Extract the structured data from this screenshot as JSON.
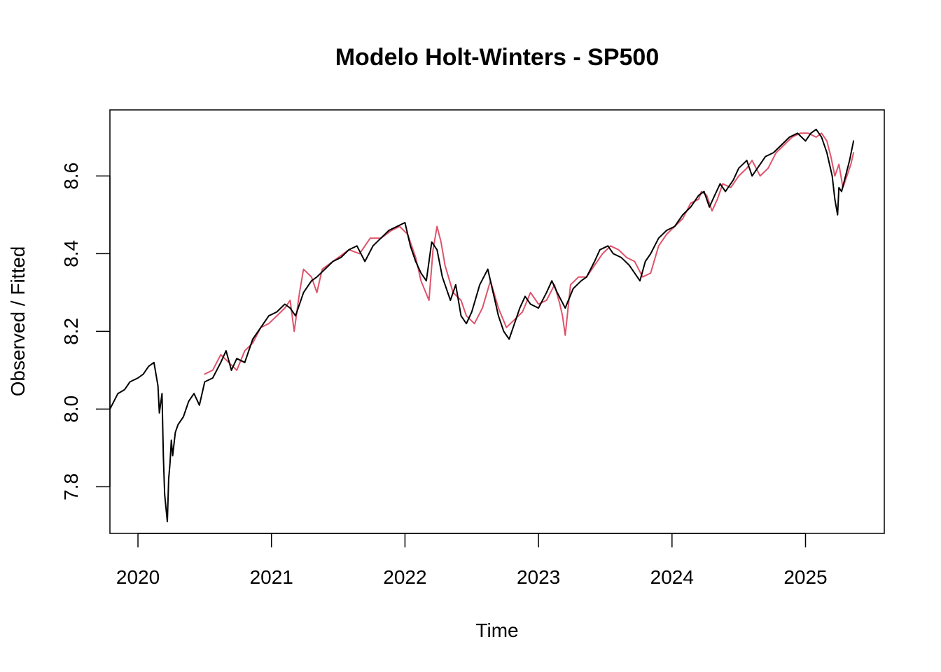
{
  "chart_data": {
    "type": "line",
    "title": "Modelo Holt-Winters - SP500",
    "xlabel": "Time",
    "ylabel": "Observed / Fitted",
    "xlim": [
      2019.79,
      2025.59
    ],
    "ylim": [
      7.68,
      8.77
    ],
    "x_ticks": [
      {
        "value": 2020,
        "label": "2020"
      },
      {
        "value": 2021,
        "label": "2021"
      },
      {
        "value": 2022,
        "label": "2022"
      },
      {
        "value": 2023,
        "label": "2023"
      },
      {
        "value": 2024,
        "label": "2024"
      },
      {
        "value": 2025,
        "label": "2025"
      }
    ],
    "y_ticks": [
      {
        "value": 7.8,
        "label": "7.8"
      },
      {
        "value": 8.0,
        "label": "8.0"
      },
      {
        "value": 8.2,
        "label": "8.2"
      },
      {
        "value": 8.4,
        "label": "8.4"
      },
      {
        "value": 8.6,
        "label": "8.6"
      }
    ],
    "grid": false,
    "legend": "none",
    "series": [
      {
        "color": "#DF536B",
        "x": [
          2020.5,
          2020.56,
          2020.62,
          2020.68,
          2020.74,
          2020.8,
          2020.86,
          2020.92,
          2020.98,
          2021.04,
          2021.1,
          2021.14,
          2021.17,
          2021.21,
          2021.24,
          2021.3,
          2021.34,
          2021.38,
          2021.42,
          2021.5,
          2021.58,
          2021.66,
          2021.74,
          2021.82,
          2021.9,
          2021.96,
          2022.02,
          2022.08,
          2022.12,
          2022.18,
          2022.21,
          2022.24,
          2022.27,
          2022.3,
          2022.36,
          2022.42,
          2022.46,
          2022.52,
          2022.58,
          2022.64,
          2022.7,
          2022.76,
          2022.82,
          2022.88,
          2022.94,
          2023.0,
          2023.06,
          2023.12,
          2023.16,
          2023.18,
          2023.2,
          2023.24,
          2023.3,
          2023.36,
          2023.42,
          2023.48,
          2023.54,
          2023.6,
          2023.66,
          2023.72,
          2023.78,
          2023.84,
          2023.9,
          2023.96,
          2024.02,
          2024.08,
          2024.14,
          2024.2,
          2024.22,
          2024.26,
          2024.3,
          2024.34,
          2024.38,
          2024.44,
          2024.5,
          2024.56,
          2024.6,
          2024.66,
          2024.72,
          2024.78,
          2024.84,
          2024.9,
          2024.96,
          2025.02,
          2025.08,
          2025.12,
          2025.16,
          2025.19,
          2025.22,
          2025.25,
          2025.28,
          2025.31,
          2025.34,
          2025.36
        ],
        "y": [
          8.09,
          8.1,
          8.14,
          8.12,
          8.1,
          8.15,
          8.17,
          8.21,
          8.22,
          8.24,
          8.26,
          8.28,
          8.2,
          8.3,
          8.36,
          8.34,
          8.3,
          8.36,
          8.37,
          8.39,
          8.41,
          8.4,
          8.44,
          8.44,
          8.46,
          8.47,
          8.45,
          8.39,
          8.33,
          8.28,
          8.41,
          8.47,
          8.43,
          8.37,
          8.3,
          8.28,
          8.24,
          8.22,
          8.26,
          8.33,
          8.26,
          8.21,
          8.23,
          8.25,
          8.3,
          8.27,
          8.28,
          8.32,
          8.27,
          8.24,
          8.19,
          8.32,
          8.34,
          8.34,
          8.37,
          8.4,
          8.42,
          8.41,
          8.39,
          8.38,
          8.34,
          8.35,
          8.42,
          8.45,
          8.47,
          8.49,
          8.53,
          8.54,
          8.56,
          8.55,
          8.51,
          8.54,
          8.58,
          8.57,
          8.6,
          8.62,
          8.64,
          8.6,
          8.62,
          8.66,
          8.68,
          8.7,
          8.71,
          8.71,
          8.7,
          8.71,
          8.69,
          8.65,
          8.6,
          8.63,
          8.57,
          8.6,
          8.63,
          8.66
        ]
      },
      {
        "color": "#000000",
        "x": [
          2019.79,
          2019.85,
          2019.9,
          2019.94,
          2020.0,
          2020.04,
          2020.08,
          2020.12,
          2020.15,
          2020.16,
          2020.18,
          2020.19,
          2020.2,
          2020.22,
          2020.23,
          2020.24,
          2020.25,
          2020.26,
          2020.28,
          2020.3,
          2020.34,
          2020.38,
          2020.42,
          2020.46,
          2020.5,
          2020.56,
          2020.62,
          2020.66,
          2020.7,
          2020.74,
          2020.8,
          2020.86,
          2020.92,
          2020.98,
          2021.04,
          2021.1,
          2021.14,
          2021.18,
          2021.24,
          2021.3,
          2021.34,
          2021.4,
          2021.46,
          2021.52,
          2021.58,
          2021.64,
          2021.7,
          2021.76,
          2021.82,
          2021.88,
          2021.94,
          2022.0,
          2022.04,
          2022.08,
          2022.12,
          2022.16,
          2022.2,
          2022.24,
          2022.28,
          2022.34,
          2022.38,
          2022.42,
          2022.46,
          2022.5,
          2022.56,
          2022.62,
          2022.66,
          2022.7,
          2022.74,
          2022.78,
          2022.82,
          2022.86,
          2022.9,
          2022.94,
          2023.0,
          2023.06,
          2023.1,
          2023.14,
          2023.2,
          2023.26,
          2023.32,
          2023.36,
          2023.42,
          2023.46,
          2023.52,
          2023.56,
          2023.62,
          2023.68,
          2023.72,
          2023.76,
          2023.8,
          2023.84,
          2023.9,
          2023.96,
          2024.02,
          2024.08,
          2024.14,
          2024.2,
          2024.24,
          2024.28,
          2024.32,
          2024.36,
          2024.4,
          2024.46,
          2024.5,
          2024.56,
          2024.6,
          2024.66,
          2024.7,
          2024.76,
          2024.82,
          2024.88,
          2024.94,
          2025.0,
          2025.04,
          2025.08,
          2025.12,
          2025.16,
          2025.2,
          2025.22,
          2025.24,
          2025.25,
          2025.27,
          2025.3,
          2025.33,
          2025.36
        ],
        "y": [
          8.0,
          8.04,
          8.05,
          8.07,
          8.08,
          8.09,
          8.11,
          8.12,
          8.06,
          7.99,
          8.04,
          7.88,
          7.78,
          7.71,
          7.82,
          7.86,
          7.92,
          7.88,
          7.94,
          7.96,
          7.98,
          8.02,
          8.04,
          8.01,
          8.07,
          8.08,
          8.12,
          8.15,
          8.1,
          8.13,
          8.12,
          8.18,
          8.21,
          8.24,
          8.25,
          8.27,
          8.26,
          8.24,
          8.3,
          8.33,
          8.34,
          8.36,
          8.38,
          8.39,
          8.41,
          8.42,
          8.38,
          8.42,
          8.44,
          8.46,
          8.47,
          8.48,
          8.42,
          8.38,
          8.35,
          8.33,
          8.43,
          8.41,
          8.34,
          8.28,
          8.32,
          8.24,
          8.22,
          8.25,
          8.32,
          8.36,
          8.3,
          8.24,
          8.2,
          8.18,
          8.22,
          8.26,
          8.29,
          8.27,
          8.26,
          8.3,
          8.33,
          8.3,
          8.26,
          8.31,
          8.33,
          8.34,
          8.38,
          8.41,
          8.42,
          8.4,
          8.39,
          8.37,
          8.35,
          8.33,
          8.38,
          8.4,
          8.44,
          8.46,
          8.47,
          8.5,
          8.52,
          8.55,
          8.56,
          8.52,
          8.55,
          8.58,
          8.56,
          8.59,
          8.62,
          8.64,
          8.6,
          8.63,
          8.65,
          8.66,
          8.68,
          8.7,
          8.71,
          8.69,
          8.71,
          8.72,
          8.7,
          8.66,
          8.6,
          8.54,
          8.5,
          8.57,
          8.56,
          8.6,
          8.64,
          8.69
        ]
      }
    ]
  }
}
